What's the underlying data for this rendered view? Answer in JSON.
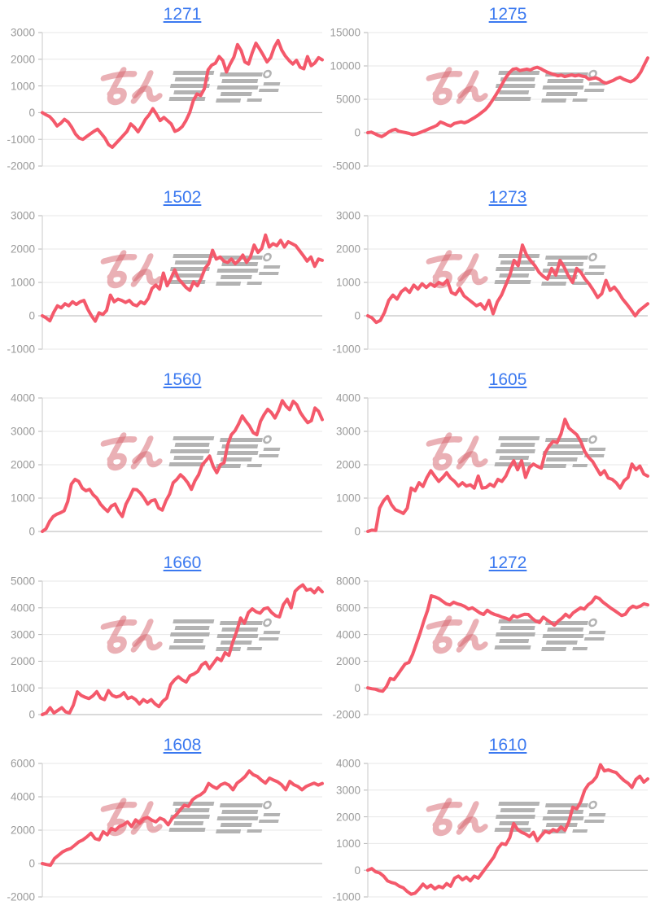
{
  "style": {
    "line_color": "#F4596B",
    "title_color": "#3B79F0",
    "axis_label_color": "#9B9B9B",
    "grid_color": "#E7E7E7",
    "zero_line_color": "#B5B5B5",
    "axis_line_color": "#D6D6D6",
    "watermark_pink": "rgba(214,98,108,0.5)",
    "watermark_gray": "#ABABAB"
  },
  "watermark": {
    "pink_text": "みん",
    "gray_text": "レポ"
  },
  "chart_data": [
    {
      "type": "line",
      "title": "1271",
      "ylim": [
        -2000,
        3000
      ],
      "yticks": [
        "3000",
        "2000",
        "1000",
        "0",
        "-1000",
        "-2000"
      ],
      "xticks": [],
      "grid": true,
      "values": [
        0,
        -80,
        -150,
        -300,
        -500,
        -400,
        -250,
        -350,
        -550,
        -800,
        -950,
        -1000,
        -900,
        -800,
        -700,
        -620,
        -780,
        -950,
        -1200,
        -1300,
        -1150,
        -1000,
        -850,
        -700,
        -420,
        -550,
        -720,
        -500,
        -250,
        -80,
        150,
        -60,
        -300,
        -180,
        -300,
        -420,
        -700,
        -640,
        -520,
        -300,
        0,
        450,
        700,
        640,
        900,
        1600,
        1780,
        1850,
        2100,
        1950,
        1520,
        1820,
        2080,
        2550,
        2320,
        1900,
        1820,
        2250,
        2600,
        2380,
        2150,
        1900,
        2060,
        2460,
        2700,
        2340,
        2120,
        1950,
        1820,
        1960,
        1700,
        1640,
        2100,
        1760,
        1860,
        2060,
        1980
      ]
    },
    {
      "type": "line",
      "title": "1275",
      "ylim": [
        -5000,
        15000
      ],
      "yticks": [
        "15000",
        "10000",
        "5000",
        "0",
        "-5000"
      ],
      "xticks": [],
      "grid": true,
      "values": [
        0,
        80,
        -150,
        -400,
        -600,
        -300,
        80,
        350,
        500,
        200,
        100,
        0,
        -120,
        -300,
        -200,
        0,
        200,
        420,
        650,
        850,
        1100,
        1600,
        1400,
        1150,
        1000,
        1380,
        1500,
        1620,
        1480,
        1700,
        2000,
        2300,
        2650,
        3050,
        3450,
        4050,
        4800,
        5600,
        6450,
        7400,
        8300,
        9000,
        9500,
        9600,
        9300,
        9420,
        9520,
        9380,
        9650,
        9800,
        9600,
        9300,
        9050,
        8850,
        8700,
        8520,
        8620,
        8400,
        8520,
        8650,
        8500,
        8620,
        8480,
        8380,
        8000,
        8120,
        8220,
        7980,
        7600,
        7420,
        7620,
        7820,
        8120,
        8300,
        8000,
        7800,
        7620,
        7850,
        8350,
        9100,
        10200,
        11200
      ]
    },
    {
      "type": "line",
      "title": "1502",
      "ylim": [
        -1000,
        3000
      ],
      "yticks": [
        "3000",
        "2000",
        "1000",
        "0",
        "-1000"
      ],
      "xticks": [],
      "grid": true,
      "values": [
        0,
        -60,
        -150,
        100,
        300,
        240,
        360,
        300,
        420,
        340,
        420,
        460,
        200,
        0,
        -160,
        90,
        40,
        160,
        620,
        420,
        500,
        460,
        400,
        460,
        340,
        300,
        420,
        360,
        520,
        820,
        920,
        800,
        1280,
        900,
        1120,
        1380,
        1100,
        980,
        850,
        760,
        1020,
        900,
        1120,
        1420,
        1560,
        1960,
        1700,
        1760,
        1640,
        1600,
        1700,
        1560,
        1660,
        1820,
        1600,
        1760,
        2120,
        1900,
        2020,
        2420,
        2060,
        2160,
        2100,
        2260,
        2060,
        2220,
        2160,
        2100,
        1950,
        1800,
        1640,
        1760,
        1480,
        1700,
        1660
      ]
    },
    {
      "type": "line",
      "title": "1273",
      "ylim": [
        -1000,
        3000
      ],
      "yticks": [
        "3000",
        "2000",
        "1000",
        "0",
        "-1000"
      ],
      "xticks": [],
      "grid": true,
      "values": [
        0,
        -60,
        -200,
        -140,
        100,
        460,
        620,
        500,
        720,
        820,
        700,
        920,
        800,
        960,
        850,
        960,
        880,
        1000,
        940,
        1060,
        700,
        640,
        820,
        600,
        500,
        400,
        300,
        360,
        200,
        460,
        60,
        420,
        620,
        920,
        1220,
        1660,
        1500,
        2120,
        1820,
        1650,
        1500,
        1300,
        1180,
        1100,
        1420,
        1220,
        1660,
        1460,
        1200,
        1000,
        1420,
        1300,
        1100,
        950,
        760,
        550,
        660,
        1060,
        760,
        860,
        700,
        500,
        350,
        180,
        0,
        160,
        260,
        360
      ]
    },
    {
      "type": "line",
      "title": "1560",
      "ylim": [
        0,
        4000
      ],
      "yticks": [
        "4000",
        "3000",
        "2000",
        "1000",
        "0"
      ],
      "xticks": [],
      "grid": true,
      "values": [
        0,
        80,
        300,
        450,
        520,
        560,
        620,
        900,
        1420,
        1560,
        1500,
        1300,
        1220,
        1260,
        1100,
        1000,
        820,
        700,
        600,
        760,
        820,
        600,
        450,
        820,
        1020,
        1260,
        1250,
        1150,
        1000,
        820,
        920,
        950,
        700,
        640,
        920,
        1120,
        1460,
        1560,
        1700,
        1600,
        1460,
        1260,
        1520,
        1700,
        2000,
        2120,
        2260,
        1950,
        1760,
        2000,
        2060,
        2600,
        2900,
        3020,
        3220,
        3460,
        3300,
        3160,
        2960,
        2900,
        3300,
        3500,
        3660,
        3560,
        3400,
        3620,
        3920,
        3760,
        3650,
        3900,
        3800,
        3560,
        3400,
        3260,
        3320,
        3700,
        3600,
        3350
      ]
    },
    {
      "type": "line",
      "title": "1605",
      "ylim": [
        0,
        4000
      ],
      "yticks": [
        "4000",
        "3000",
        "2000",
        "1000",
        "0"
      ],
      "xticks": [],
      "grid": true,
      "values": [
        0,
        40,
        30,
        700,
        920,
        1050,
        800,
        650,
        600,
        540,
        700,
        1300,
        1220,
        1460,
        1350,
        1620,
        1820,
        1650,
        1500,
        1620,
        1760,
        1600,
        1500,
        1360,
        1460,
        1360,
        1400,
        1300,
        1660,
        1300,
        1320,
        1420,
        1350,
        1560,
        1500,
        1660,
        1920,
        2120,
        1850,
        2120,
        1620,
        1920,
        2020,
        1950,
        1900,
        2360,
        2560,
        2700,
        2660,
        2920,
        3360,
        3100,
        3000,
        2900,
        2700,
        2400,
        2220,
        2100,
        1900,
        1700,
        1820,
        1600,
        1560,
        1460,
        1300,
        1520,
        1620,
        2020,
        1850,
        1960,
        1720,
        1660
      ]
    },
    {
      "type": "line",
      "title": "1660",
      "ylim": [
        0,
        5000
      ],
      "yticks": [
        "5000",
        "4000",
        "3000",
        "2000",
        "1000",
        "0"
      ],
      "xticks": [],
      "grid": true,
      "values": [
        0,
        60,
        260,
        60,
        160,
        260,
        100,
        60,
        360,
        850,
        720,
        650,
        600,
        700,
        860,
        620,
        560,
        900,
        720,
        660,
        700,
        820,
        600,
        660,
        560,
        400,
        560,
        460,
        560,
        400,
        300,
        500,
        620,
        1120,
        1300,
        1420,
        1300,
        1220,
        1460,
        1520,
        1620,
        1860,
        1960,
        1720,
        1920,
        2120,
        2020,
        2320,
        2220,
        2720,
        3120,
        3620,
        3420,
        3820,
        3960,
        3850,
        3800,
        3960,
        4000,
        3820,
        3700,
        3660,
        4120,
        4320,
        4000,
        4620,
        4760,
        4860,
        4660,
        4700,
        4560,
        4750,
        4600
      ]
    },
    {
      "type": "line",
      "title": "1272",
      "ylim": [
        -2000,
        8000
      ],
      "yticks": [
        "8000",
        "6000",
        "4000",
        "2000",
        "0",
        "-2000"
      ],
      "xticks": [],
      "grid": true,
      "values": [
        0,
        -60,
        -100,
        -200,
        -250,
        100,
        700,
        620,
        1000,
        1400,
        1800,
        1900,
        2500,
        3300,
        4100,
        5000,
        5800,
        6900,
        6820,
        6700,
        6500,
        6300,
        6220,
        6420,
        6300,
        6220,
        6100,
        5900,
        6000,
        5820,
        5620,
        5500,
        5820,
        5620,
        5500,
        5420,
        5300,
        5220,
        5100,
        5420,
        5300,
        5420,
        5520,
        5500,
        5220,
        5000,
        4900,
        5300,
        5100,
        4900,
        4700,
        5000,
        5220,
        5520,
        5300,
        5620,
        5820,
        6000,
        5900,
        6220,
        6420,
        6820,
        6700,
        6420,
        6220,
        6000,
        5820,
        5620,
        5420,
        5520,
        5920,
        6120,
        6020,
        6120,
        6300,
        6220
      ]
    },
    {
      "type": "line",
      "title": "1608",
      "ylim": [
        -2000,
        6000
      ],
      "yticks": [
        "6000",
        "4000",
        "2000",
        "0",
        "-2000"
      ],
      "xticks": [],
      "grid": true,
      "values": [
        0,
        -60,
        -100,
        300,
        500,
        700,
        820,
        900,
        1100,
        1300,
        1420,
        1600,
        1820,
        1500,
        1420,
        1900,
        1720,
        2100,
        2000,
        2220,
        2320,
        2500,
        2220,
        2620,
        2420,
        2700,
        2760,
        2600,
        2500,
        2720,
        2620,
        2320,
        2700,
        2920,
        3220,
        3500,
        3420,
        3820,
        4000,
        4120,
        4320,
        4800,
        4620,
        4500,
        4720,
        4820,
        4700,
        4420,
        4820,
        5000,
        5220,
        5550,
        5320,
        5220,
        5000,
        4820,
        5120,
        5000,
        4900,
        4720,
        4420,
        4920,
        4720,
        4620,
        4420,
        4620,
        4720,
        4820,
        4700,
        4800
      ]
    },
    {
      "type": "line",
      "title": "1610",
      "ylim": [
        -1000,
        4000
      ],
      "yticks": [
        "4000",
        "3000",
        "2000",
        "1000",
        "0",
        "-1000"
      ],
      "xticks": [],
      "grid": true,
      "values": [
        0,
        60,
        -60,
        -100,
        -220,
        -400,
        -460,
        -500,
        -600,
        -660,
        -800,
        -900,
        -860,
        -700,
        -520,
        -660,
        -560,
        -700,
        -600,
        -660,
        -500,
        -600,
        -300,
        -220,
        -360,
        -260,
        -400,
        -220,
        -300,
        -100,
        100,
        300,
        500,
        820,
        1000,
        960,
        1220,
        1750,
        1520,
        1420,
        1360,
        1260,
        1420,
        1100,
        1300,
        1460,
        1400,
        1520,
        1460,
        1620,
        1500,
        1820,
        2360,
        2300,
        2560,
        3000,
        3220,
        3320,
        3500,
        3950,
        3720,
        3760,
        3700,
        3660,
        3500,
        3360,
        3260,
        3100,
        3400,
        3520,
        3300,
        3420
      ]
    }
  ]
}
